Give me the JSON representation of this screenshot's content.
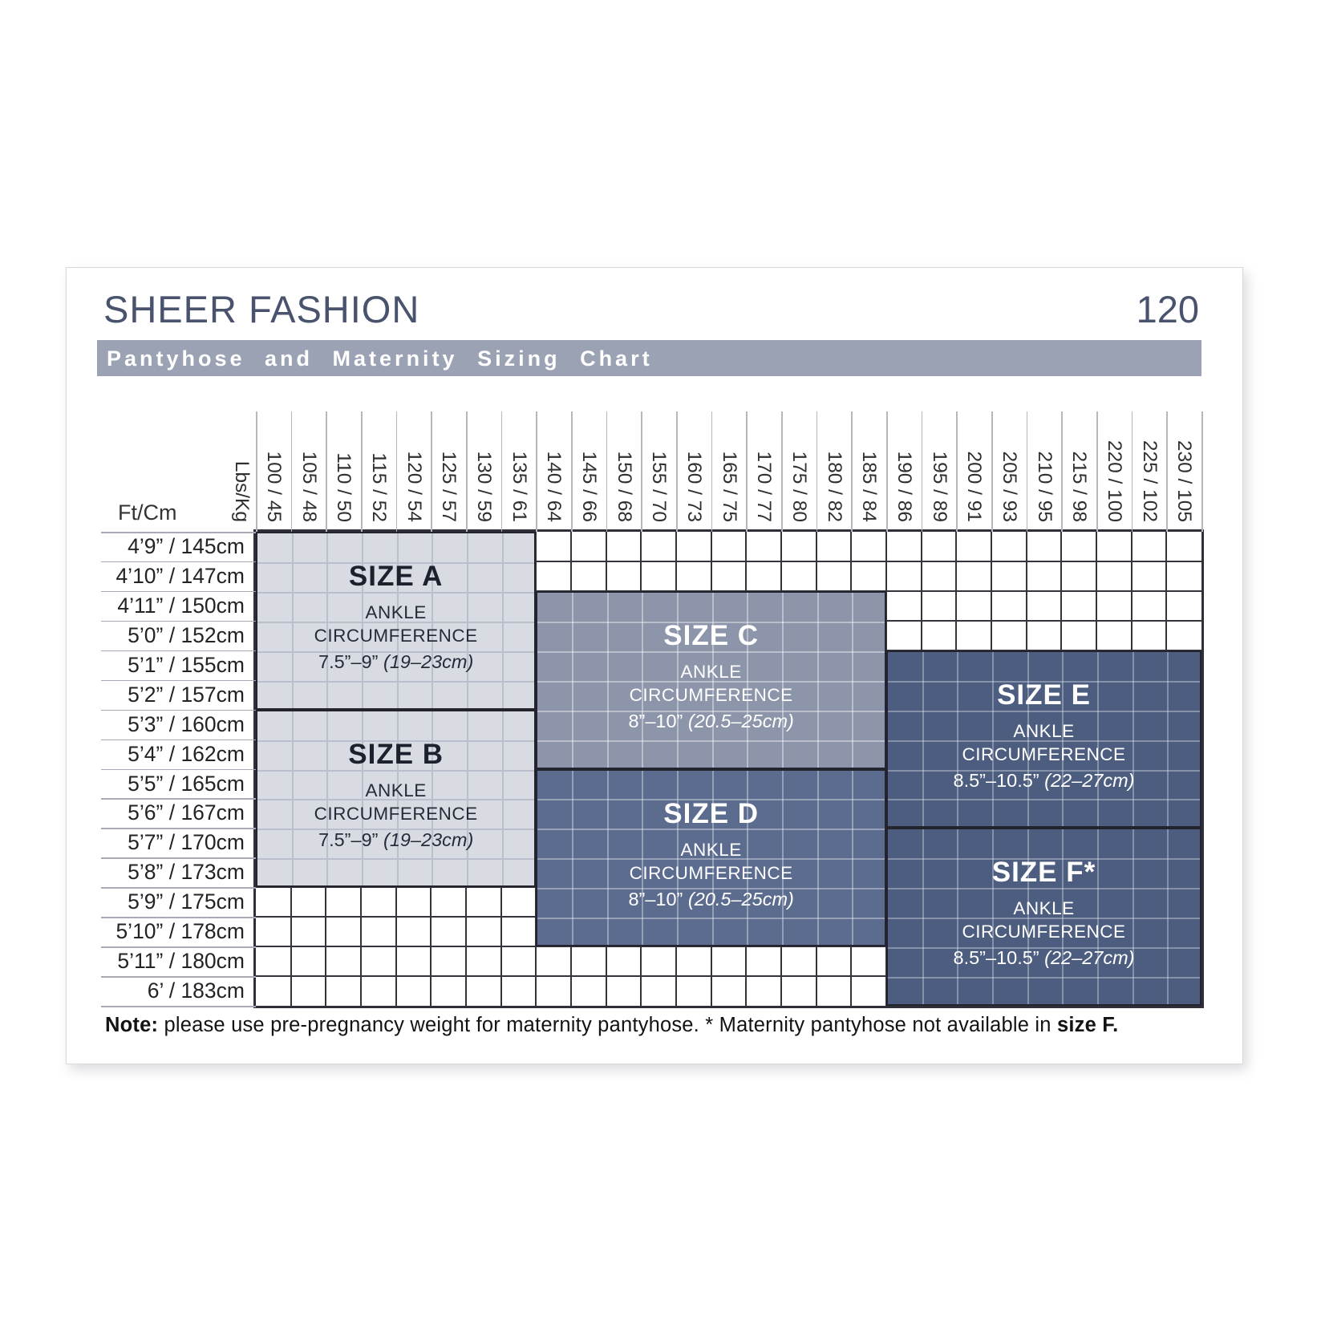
{
  "page": {
    "title": "SHEER FASHION",
    "page_number": "120",
    "banner": "Pantyhose and Maternity Sizing Chart",
    "note": {
      "bold_lead": "Note:",
      "body": " please use pre-pregnancy weight for maternity pantyhose. * Maternity pantyhose not available in ",
      "bold_tail": "size F."
    }
  },
  "chart_data": {
    "type": "table",
    "title": "Pantyhose and Maternity Sizing Chart",
    "x_axis_label": "Lbs/Kg",
    "y_axis_label": "Ft/Cm",
    "weight_columns_lbs_kg": [
      "100 / 45",
      "105 / 48",
      "110 / 50",
      "115 / 52",
      "120 / 54",
      "125 / 57",
      "130 / 59",
      "135 / 61",
      "140 / 64",
      "145 / 66",
      "150 / 68",
      "155 / 70",
      "160 / 73",
      "165 / 75",
      "170 / 77",
      "175 / 80",
      "180 / 82",
      "185 / 84",
      "190 / 86",
      "195 / 89",
      "200 / 91",
      "205 / 93",
      "210 / 95",
      "215 / 98",
      "220 / 100",
      "225 / 102",
      "230 / 105"
    ],
    "height_rows_ft_cm": [
      "4’9” / 145cm",
      "4’10” / 147cm",
      "4’11” / 150cm",
      "5’0” / 152cm",
      "5’1” / 155cm",
      "5’2” / 157cm",
      "5’3” / 160cm",
      "5’4” / 162cm",
      "5’5” / 165cm",
      "5’6” / 167cm",
      "5’7” / 170cm",
      "5’8” / 173cm",
      "5’9” / 175cm",
      "5’10” / 178cm",
      "5’11” / 180cm",
      "6’ / 183cm"
    ],
    "regions": [
      {
        "id": "a",
        "label": "SIZE A",
        "line1": "ANKLE",
        "line2": "CIRCUMFERENCE",
        "range": "7.5”–9”",
        "range_metric": "(19–23cm)",
        "col_start": 0,
        "col_end": 7,
        "row_start": 0,
        "row_end": 5,
        "fill": "#d8dbe2",
        "text_color": "#262b38",
        "heading_color": "#1d212e",
        "grid_line": "#b9bfcd"
      },
      {
        "id": "b",
        "label": "SIZE B",
        "line1": "ANKLE",
        "line2": "CIRCUMFERENCE",
        "range": "7.5”–9”",
        "range_metric": "(19–23cm)",
        "col_start": 0,
        "col_end": 7,
        "row_start": 6,
        "row_end": 11,
        "fill": "#d8dbe2",
        "text_color": "#262b38",
        "heading_color": "#1d212e",
        "grid_line": "#b9bfcd"
      },
      {
        "id": "c",
        "label": "SIZE C",
        "line1": "ANKLE",
        "line2": "CIRCUMFERENCE",
        "range": "8”–10”",
        "range_metric": "(20.5–25cm)",
        "col_start": 8,
        "col_end": 17,
        "row_start": 2,
        "row_end": 7,
        "fill": "#8c95a9",
        "text_color": "#ffffff",
        "heading_color": "#ffffff",
        "grid_line": "rgba(255,255,255,0.4)"
      },
      {
        "id": "d",
        "label": "SIZE D",
        "line1": "ANKLE",
        "line2": "CIRCUMFERENCE",
        "range": "8”–10”",
        "range_metric": "(20.5–25cm)",
        "col_start": 8,
        "col_end": 17,
        "row_start": 8,
        "row_end": 13,
        "fill": "#5c6c8f",
        "text_color": "#ffffff",
        "heading_color": "#ffffff",
        "grid_line": "rgba(255,255,255,0.35)"
      },
      {
        "id": "e",
        "label": "SIZE E",
        "line1": "ANKLE",
        "line2": "CIRCUMFERENCE",
        "range": "8.5”–10.5”",
        "range_metric": "(22–27cm)",
        "col_start": 18,
        "col_end": 26,
        "row_start": 4,
        "row_end": 9,
        "fill": "#4c5d7f",
        "text_color": "#ffffff",
        "heading_color": "#ffffff",
        "grid_line": "rgba(255,255,255,0.32)"
      },
      {
        "id": "f",
        "label": "SIZE F*",
        "line1": "ANKLE",
        "line2": "CIRCUMFERENCE",
        "range": "8.5”–10.5”",
        "range_metric": "(22–27cm)",
        "col_start": 18,
        "col_end": 26,
        "row_start": 10,
        "row_end": 15,
        "fill": "#4c5d7f",
        "text_color": "#ffffff",
        "heading_color": "#ffffff",
        "grid_line": "rgba(255,255,255,0.32)"
      }
    ]
  }
}
